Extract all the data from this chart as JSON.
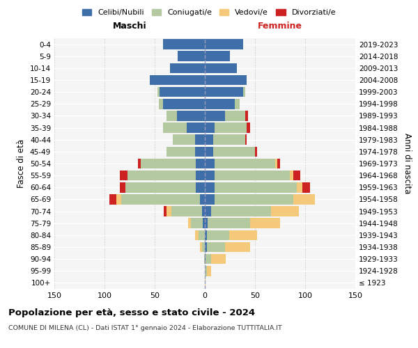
{
  "age_groups": [
    "100+",
    "95-99",
    "90-94",
    "85-89",
    "80-84",
    "75-79",
    "70-74",
    "65-69",
    "60-64",
    "55-59",
    "50-54",
    "45-49",
    "40-44",
    "35-39",
    "30-34",
    "25-29",
    "20-24",
    "15-19",
    "10-14",
    "5-9",
    "0-4"
  ],
  "birth_years": [
    "≤ 1923",
    "1924-1928",
    "1929-1933",
    "1934-1938",
    "1939-1943",
    "1944-1948",
    "1949-1953",
    "1954-1958",
    "1959-1963",
    "1964-1968",
    "1969-1973",
    "1974-1978",
    "1979-1983",
    "1984-1988",
    "1989-1993",
    "1994-1998",
    "1999-2003",
    "2004-2008",
    "2009-2013",
    "2014-2018",
    "2019-2023"
  ],
  "colors": {
    "celibi": "#3e6fa8",
    "coniugati": "#b5c9a0",
    "vedovi": "#f5c97a",
    "divorziati": "#cc2222"
  },
  "maschi": {
    "celibi": [
      0,
      0,
      0,
      0,
      0,
      2,
      3,
      5,
      9,
      9,
      9,
      10,
      10,
      18,
      28,
      42,
      45,
      55,
      35,
      27,
      42
    ],
    "coniugati": [
      0,
      0,
      1,
      3,
      6,
      12,
      30,
      78,
      70,
      68,
      55,
      28,
      22,
      24,
      10,
      4,
      2,
      0,
      0,
      0,
      0
    ],
    "vedovi": [
      0,
      0,
      0,
      2,
      4,
      3,
      5,
      5,
      0,
      0,
      0,
      0,
      0,
      0,
      0,
      0,
      0,
      0,
      0,
      0,
      0
    ],
    "divorziati": [
      0,
      0,
      0,
      0,
      0,
      0,
      3,
      7,
      6,
      8,
      3,
      0,
      0,
      0,
      0,
      0,
      0,
      0,
      0,
      0,
      0
    ]
  },
  "femmine": {
    "celibi": [
      0,
      0,
      1,
      2,
      2,
      3,
      6,
      10,
      10,
      10,
      10,
      8,
      8,
      10,
      20,
      30,
      38,
      42,
      32,
      25,
      38
    ],
    "coniugati": [
      0,
      2,
      5,
      18,
      22,
      42,
      60,
      78,
      82,
      75,
      60,
      42,
      32,
      32,
      20,
      5,
      2,
      0,
      0,
      0,
      0
    ],
    "vedovi": [
      1,
      4,
      15,
      25,
      28,
      30,
      28,
      22,
      5,
      3,
      2,
      0,
      0,
      0,
      0,
      0,
      0,
      0,
      0,
      0,
      0
    ],
    "divorziati": [
      0,
      0,
      0,
      0,
      0,
      0,
      0,
      0,
      8,
      7,
      3,
      2,
      2,
      3,
      3,
      0,
      0,
      0,
      0,
      0,
      0
    ]
  },
  "xlim": 150,
  "title_main": "Popolazione per età, sesso e stato civile - 2024",
  "title_sub": "COMUNE DI MILENA (CL) - Dati ISTAT 1° gennaio 2024 - Elaborazione TUTTITALIA.IT",
  "ylabel_left": "Fasce di età",
  "ylabel_right": "Anni di nascita",
  "legend_labels": [
    "Celibi/Nubili",
    "Coniugati/e",
    "Vedovi/e",
    "Divorziati/e"
  ],
  "maschi_label": "Maschi",
  "femmine_label": "Femmine",
  "femmine_color": "#cc2222",
  "bg_color": "#f5f5f5",
  "grid_color": "#cccccc"
}
